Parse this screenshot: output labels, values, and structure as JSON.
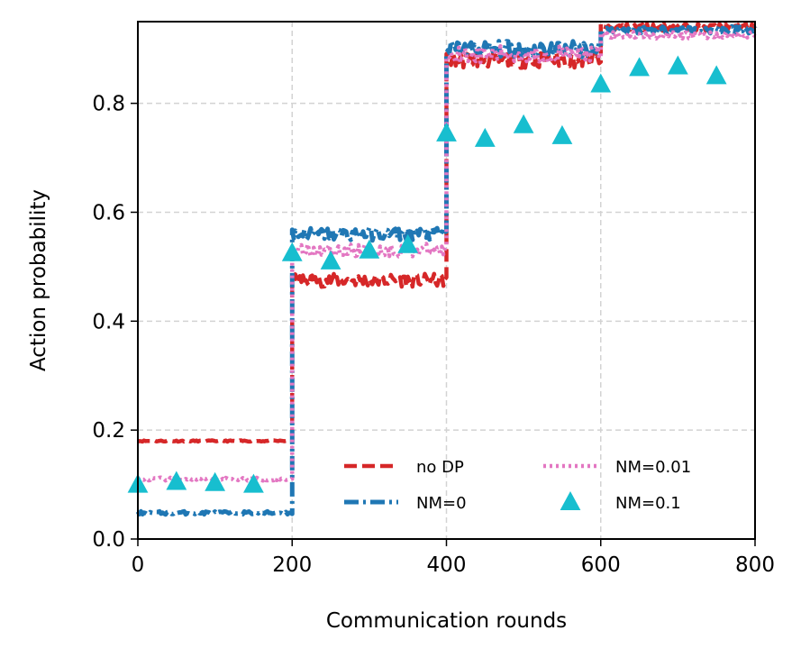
{
  "chart_data": {
    "type": "line",
    "title": "",
    "xlabel": "Communication rounds",
    "ylabel": "Action probability",
    "xlim": [
      0,
      800
    ],
    "ylim": [
      0,
      0.95
    ],
    "xticks": [
      "0",
      "200",
      "400",
      "600",
      "800"
    ],
    "yticks": [
      "0.0",
      "0.2",
      "0.4",
      "0.6",
      "0.8"
    ],
    "grid": true,
    "legend_position": "lower-right",
    "series": [
      {
        "name": "no DP",
        "style": "dashed",
        "color": "#d62728",
        "segments": [
          {
            "x": [
              0,
              200
            ],
            "y": 0.18
          },
          {
            "x": [
              200,
              400
            ],
            "y": 0.475
          },
          {
            "x": [
              400,
              600
            ],
            "y": 0.88
          },
          {
            "x": [
              600,
              800
            ],
            "y": 0.94
          }
        ]
      },
      {
        "name": "NM=0",
        "style": "dashdot",
        "color": "#1f77b4",
        "segments": [
          {
            "x": [
              0,
              200
            ],
            "y": 0.048
          },
          {
            "x": [
              200,
              400
            ],
            "y": 0.56
          },
          {
            "x": [
              400,
              600
            ],
            "y": 0.9
          },
          {
            "x": [
              600,
              800
            ],
            "y": 0.935
          }
        ]
      },
      {
        "name": "NM=0.01",
        "style": "dotted",
        "color": "#e377c2",
        "segments": [
          {
            "x": [
              0,
              200
            ],
            "y": 0.11
          },
          {
            "x": [
              200,
              400
            ],
            "y": 0.53
          },
          {
            "x": [
              400,
              600
            ],
            "y": 0.89
          },
          {
            "x": [
              600,
              800
            ],
            "y": 0.925
          }
        ]
      },
      {
        "name": "NM=0.1",
        "style": "triangle-markers",
        "color": "#17becf",
        "x": [
          0,
          50,
          100,
          150,
          200,
          250,
          300,
          350,
          400,
          450,
          500,
          550,
          600,
          650,
          700,
          750
        ],
        "y": [
          0.1,
          0.105,
          0.103,
          0.1,
          0.525,
          0.51,
          0.53,
          0.54,
          0.745,
          0.735,
          0.76,
          0.74,
          0.835,
          0.865,
          0.868,
          0.85
        ]
      }
    ]
  }
}
